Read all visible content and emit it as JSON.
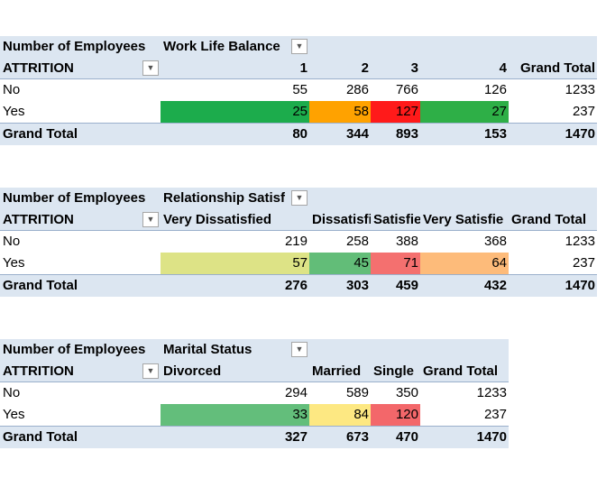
{
  "pivot1": {
    "value_label": "Number of Employees",
    "col_field": "Work Life Balance",
    "row_field": "ATTRITION",
    "columns": [
      "1",
      "2",
      "3",
      "4",
      "Grand Total"
    ],
    "rows": [
      {
        "label": "No",
        "values": [
          "55",
          "286",
          "766",
          "126",
          "1233"
        ]
      },
      {
        "label": "Yes",
        "values": [
          "25",
          "58",
          "127",
          "27",
          "237"
        ]
      }
    ],
    "grand_total": {
      "label": "Grand Total",
      "values": [
        "80",
        "344",
        "893",
        "153",
        "1470"
      ]
    },
    "highlight_colors": [
      "#1cac4c",
      "#ffa200",
      "#ff1a1a",
      "#2eaf47"
    ]
  },
  "pivot2": {
    "value_label": "Number of Employees",
    "col_field": "Relationship Satisf",
    "row_field": "ATTRITION",
    "columns": [
      "Very Dissatisfied",
      "Dissatisfi",
      "Satisfie",
      "Very Satisfie",
      "Grand Total"
    ],
    "rows": [
      {
        "label": "No",
        "values": [
          "219",
          "258",
          "388",
          "368",
          "1233"
        ]
      },
      {
        "label": "Yes",
        "values": [
          "57",
          "45",
          "71",
          "64",
          "237"
        ]
      }
    ],
    "grand_total": {
      "label": "Grand Total",
      "values": [
        "276",
        "303",
        "459",
        "432",
        "1470"
      ]
    },
    "highlight_colors": [
      "#dde386",
      "#62bd78",
      "#f4706f",
      "#fdbb7a"
    ]
  },
  "pivot3": {
    "value_label": "Number of Employees",
    "col_field": "Marital Status",
    "row_field": "ATTRITION",
    "columns": [
      "Divorced",
      "Married",
      "Single",
      "Grand Total"
    ],
    "rows": [
      {
        "label": "No",
        "values": [
          "294",
          "589",
          "350",
          "1233"
        ]
      },
      {
        "label": "Yes",
        "values": [
          "33",
          "84",
          "120",
          "237"
        ]
      }
    ],
    "grand_total": {
      "label": "Grand Total",
      "values": [
        "327",
        "673",
        "470",
        "1470"
      ]
    },
    "highlight_colors": [
      "#63be7b",
      "#fde882",
      "#f3676a"
    ]
  },
  "icons": {
    "filter_dropdown": "dropdown-arrow-icon"
  }
}
